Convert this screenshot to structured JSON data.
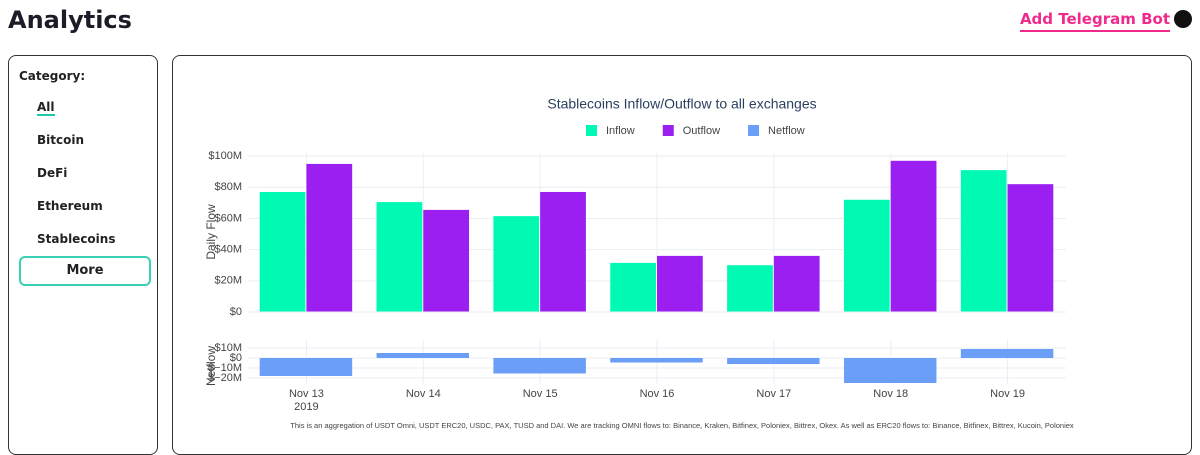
{
  "header": {
    "title": "Analytics",
    "action": "Add Telegram Bot"
  },
  "sidebar": {
    "category_label": "Category:",
    "items": [
      "All",
      "Bitcoin",
      "DeFi",
      "Ethereum",
      "Stablecoins"
    ],
    "active": 0,
    "more_button": "More"
  },
  "chart_data": {
    "type": "bar",
    "title": "Stablecoins Inflow/Outflow to all exchanges",
    "y_label": "Daily Flow",
    "y2_label": "Netflow",
    "categories": [
      "Nov 13",
      "Nov 14",
      "Nov 15",
      "Nov 16",
      "Nov 17",
      "Nov 18",
      "Nov 19"
    ],
    "x_year_label": "2019",
    "series": [
      {
        "name": "Inflow",
        "color": "#00fab4",
        "values": [
          77,
          70.5,
          61.5,
          31.5,
          30,
          72,
          91
        ]
      },
      {
        "name": "Outflow",
        "color": "#9b1ff0",
        "values": [
          95,
          65.5,
          77,
          36,
          36,
          97,
          82
        ]
      },
      {
        "name": "Netflow",
        "color": "#6b9ef7",
        "axis": "y2",
        "values": [
          -18,
          5,
          -15.5,
          -4.5,
          -6,
          -25,
          9
        ]
      }
    ],
    "ylim": [
      0,
      102
    ],
    "yticks": [
      {
        "value": 0,
        "label": "$0"
      },
      {
        "value": 20,
        "label": "$20M"
      },
      {
        "value": 40,
        "label": "$40M"
      },
      {
        "value": 60,
        "label": "$60M"
      },
      {
        "value": 80,
        "label": "$80M"
      },
      {
        "value": 100,
        "label": "$100M"
      }
    ],
    "y2lim": [
      -26,
      18
    ],
    "y2ticks": [
      {
        "value": -20,
        "label": "$−20M"
      },
      {
        "value": -10,
        "label": "$−10M"
      },
      {
        "value": 0,
        "label": "$0"
      },
      {
        "value": 10,
        "label": "$10M"
      }
    ],
    "grid": true,
    "legend": "top",
    "note": "This is an aggregation of USDT Omni, USDT ERC20, USDC, PAX, TUSD and DAI. We are tracking OMNI flows to: Binance, Kraken, Bitfinex, Poloniex, Bittrex, Okex. As well as ERC20 flows to: Binance, Bitfinex, Bittrex, Kucoin, Poloniex"
  }
}
